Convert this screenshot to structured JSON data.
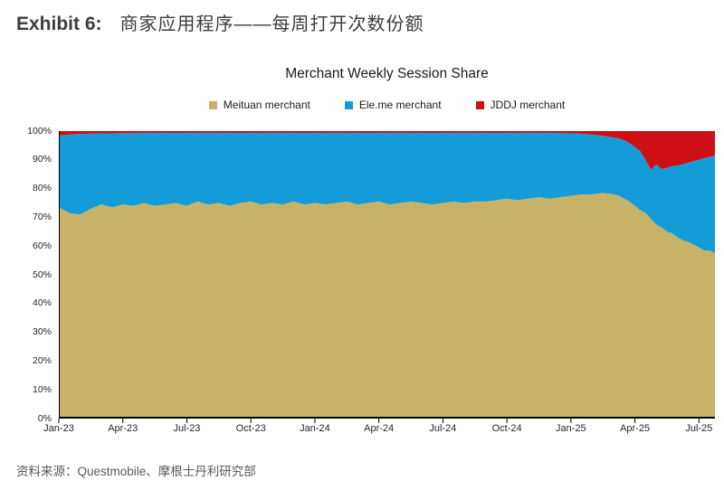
{
  "header": {
    "exhibit_label": "Exhibit 6:",
    "title_zh": "商家应用程序——每周打开次数份额"
  },
  "source": {
    "text": "资料来源：Questmobile、摩根士丹利研究部"
  },
  "chart_data": {
    "type": "area",
    "stacked": true,
    "title": "Merchant Weekly Session Share",
    "legend_position": "top",
    "grid": false,
    "ylim": [
      0,
      100
    ],
    "xlim": [
      0,
      30.75
    ],
    "x_unit": "months since Jan-2023 (weekly data)",
    "y_tick_labels": [
      "100%",
      "90%",
      "80%",
      "70%",
      "60%",
      "50%",
      "40%",
      "30%",
      "20%",
      "10%",
      "0%"
    ],
    "x_tick_positions": [
      0,
      3,
      6,
      9,
      12,
      15,
      18,
      21,
      24,
      27,
      30
    ],
    "x_tick_labels": [
      "Jan-23",
      "Apr-23",
      "Jul-23",
      "Oct-23",
      "Jan-24",
      "Apr-24",
      "Jul-24",
      "Oct-24",
      "Jan-25",
      "Apr-25",
      "Jul-25"
    ],
    "axis_color": "#000000",
    "x": [
      0,
      0.5,
      1,
      1.5,
      2,
      2.5,
      3,
      3.5,
      4,
      4.5,
      5,
      5.5,
      6,
      6.5,
      7,
      7.5,
      8,
      8.5,
      9,
      9.5,
      10,
      10.5,
      11,
      11.5,
      12,
      12.5,
      13,
      13.5,
      14,
      14.5,
      15,
      15.5,
      16,
      16.5,
      17,
      17.5,
      18,
      18.5,
      19,
      19.5,
      20,
      20.5,
      21,
      21.5,
      22,
      22.5,
      23,
      23.5,
      24,
      24.5,
      25,
      25.5,
      26,
      26.25,
      26.5,
      26.75,
      27,
      27.25,
      27.5,
      27.75,
      28,
      28.25,
      28.5,
      28.75,
      29,
      29.25,
      29.5,
      29.75,
      30,
      30.25,
      30.5,
      30.75
    ],
    "series": [
      {
        "name": "Meituan merchant",
        "color": "#C8B268",
        "values": [
          73.5,
          71.5,
          71,
          73,
          74.5,
          73.5,
          74.5,
          74,
          75,
          74,
          74.5,
          75,
          74,
          75.5,
          74.5,
          75,
          74,
          75,
          75.5,
          74.5,
          75,
          74.5,
          75.5,
          74.5,
          75,
          74.5,
          75,
          75.5,
          74.5,
          75,
          75.5,
          74.5,
          75,
          75.5,
          75,
          74.5,
          75,
          75.5,
          75,
          75.5,
          75.5,
          76,
          76.5,
          76,
          76.5,
          77,
          76.5,
          77,
          77.5,
          78,
          78,
          78.5,
          78,
          77.5,
          76.5,
          75.5,
          74,
          72.5,
          71.5,
          69.5,
          67.5,
          66.5,
          65,
          64.5,
          63,
          62,
          61.5,
          60.5,
          59.5,
          58.5,
          58.5,
          57.5
        ]
      },
      {
        "name": "Ele.me merchant",
        "color": "#149CD8",
        "values": [
          25,
          27.3,
          28,
          26.1,
          24.7,
          25.7,
          24.8,
          25.3,
          24.4,
          25.3,
          24.9,
          24.3,
          25.4,
          23.8,
          24.9,
          24.3,
          25.4,
          24.3,
          23.9,
          24.8,
          24.4,
          24.8,
          23.9,
          24.8,
          24.4,
          24.8,
          24.4,
          23.8,
          24.9,
          24.3,
          23.9,
          24.8,
          24.4,
          23.8,
          24.4,
          24.8,
          24.4,
          23.8,
          24.4,
          23.8,
          23.9,
          23.3,
          22.9,
          23.3,
          22.9,
          22.3,
          22.9,
          22.3,
          21.7,
          21.1,
          20.8,
          19.9,
          19.8,
          19.9,
          20.3,
          20.3,
          20.5,
          20.5,
          18.5,
          17,
          20.9,
          20.3,
          22.2,
          23.3,
          25,
          26.5,
          27.5,
          29.1,
          30.5,
          32.1,
          32.5,
          34
        ]
      },
      {
        "name": "JDDJ merchant",
        "color": "#CE1015",
        "values": [
          1.5,
          1.2,
          1,
          0.9,
          0.8,
          0.8,
          0.7,
          0.7,
          0.6,
          0.7,
          0.6,
          0.7,
          0.6,
          0.7,
          0.6,
          0.7,
          0.6,
          0.7,
          0.6,
          0.7,
          0.6,
          0.7,
          0.6,
          0.7,
          0.6,
          0.7,
          0.6,
          0.7,
          0.6,
          0.7,
          0.6,
          0.7,
          0.6,
          0.7,
          0.6,
          0.7,
          0.6,
          0.7,
          0.6,
          0.7,
          0.6,
          0.7,
          0.6,
          0.7,
          0.6,
          0.7,
          0.6,
          0.7,
          0.8,
          0.9,
          1.2,
          1.6,
          2.2,
          2.6,
          3.2,
          4.2,
          5.5,
          7,
          10,
          13.5,
          11.6,
          13.2,
          12.8,
          12.2,
          12,
          11.5,
          11,
          10.4,
          10,
          9.4,
          9,
          8.5
        ]
      }
    ]
  }
}
